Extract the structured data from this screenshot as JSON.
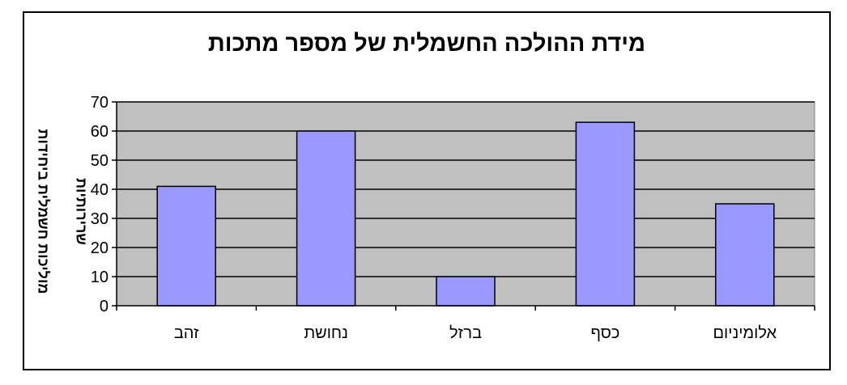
{
  "chart_data": {
    "type": "bar",
    "title": "מידת ההולכה החשמלית של  מספר מתכות",
    "xlabel": "",
    "ylabel": [
      "מוליכות חשמלית  ביחידות",
      "שרירותיות"
    ],
    "categories": [
      "זהב",
      "נחושת",
      "ברזל",
      "כסף",
      "אלומיניום"
    ],
    "values": [
      41,
      60,
      10,
      63,
      35
    ],
    "ylim": [
      0,
      70
    ],
    "yticks": [
      0,
      10,
      20,
      30,
      40,
      50,
      60,
      70
    ],
    "grid": true,
    "bar_color": "#9999ff",
    "plot_background": "#c0c0c0"
  }
}
